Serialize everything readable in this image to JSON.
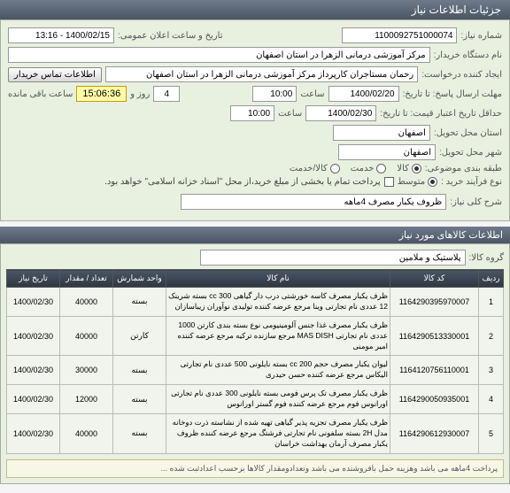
{
  "titlebar": "جزئیات اطلاعات نیاز",
  "form": {
    "need_no_label": "شماره نیاز:",
    "need_no": "1100092751000074",
    "ann_time_label": "تاریخ و ساعت اعلان عمومی:",
    "ann_time": "1400/02/15 - 13:16",
    "buyer_org_label": "نام دستگاه خریدار:",
    "buyer_org": "مرکز آموزشی درمانی الزهرا در استان اصفهان",
    "creator_label": "ایجاد کننده درخواست:",
    "creator": "رحمان مستاجران کارپرداز مرکز آموزشی درمانی الزهرا در استان اصفهان",
    "contact_btn": "اطلاعات تماس خریدار",
    "deadline_label": "مهلت ارسال پاسخ: تا تاریخ:",
    "deadline_date": "1400/02/20",
    "deadline_hour_label": "ساعت",
    "deadline_hour": "10:00",
    "remaining_days": "4",
    "day_label": "روز و",
    "countdown": "15:06:36",
    "remain_label": "ساعت باقی مانده",
    "min_valid_label": "حداقل تاریخ اعتبار قیمت: تا تاریخ:",
    "min_valid_date": "1400/02/30",
    "min_valid_hour": "10:00",
    "deliver_prov_label": "استان محل تحویل:",
    "deliver_prov": "اصفهان",
    "deliver_city_label": "شهر محل تحویل:",
    "deliver_city": "اصفهان",
    "budget_label": "طبقه بندی موضوعی:",
    "budget_goods": "کالا",
    "budget_service": "خدمت",
    "budget_goods_service": "کالا/خدمت",
    "proc_type_label": "نوع فرآیند خرید :",
    "proc_small": "متوسط",
    "checkbox_label": "پرداخت تمام یا بخشی از مبلغ خرید،از محل \"اسناد خزانه اسلامی\" خواهد بود.",
    "need_title_label": "شرح کلی نیاز:",
    "need_title": "ظروف یکبار مصرف 4ماهه"
  },
  "section2": "اطلاعات کالاهای مورد نیاز",
  "goods_group_label": "گروه کالا:",
  "goods_group": "پلاستیک و ملامین",
  "table": {
    "headers": [
      "ردیف",
      "کد کالا",
      "نام کالا",
      "واحد شمارش",
      "تعداد / مقدار",
      "تاریخ نیاز"
    ],
    "rows": [
      [
        "1",
        "1164290395970007",
        "ظرف یکبار مصرف کاسه خورشتی درب دار گیاهی 300 cc بسته شرینک 12 عددی نام تجارتی وینا مرجع عرضه کننده تولیدی نوآوران زیباسازان",
        "بسته",
        "40000",
        "1400/02/30"
      ],
      [
        "2",
        "1164290513330001",
        "ظرف یکبار مصرف غذا جنس آلومینیومی نوع بسته بندی کارتن 1000 عددی نام تجارتی MAS DISH مرجع سازنده ترکیه مرجع عرضه کننده امیر مومنی",
        "کارتن",
        "40000",
        "1400/02/30"
      ],
      [
        "3",
        "1164120756110001",
        "لیوان یکبار مصرف حجم 200 cc بسته نایلونی 500 عددی نام تجارتی الیکاس مرجع عرضه کننده حسن حیدری",
        "بسته",
        "30000",
        "1400/02/30"
      ],
      [
        "4",
        "1164290050935001",
        "ظرف یکبار مصرف تک پرس فومی بسته نایلونی 300 عددی نام تجارتی اورانوس فوم مرجع عرضه کننده فوم گستر اورانوس",
        "بسته",
        "12000",
        "1400/02/30"
      ],
      [
        "5",
        "1164290612930007",
        "ظرف یکبار مصرف تجزیه پذیر گیاهی تهیه شده از نشاسته ذرت دوخانه مدل 2H بسته سلفونی نام تجارتی فرشتگ مرجع عرضه کننده ظروف یکبار مصرف آرمان بهداشت خراسان",
        "بسته",
        "40000",
        "1400/02/30"
      ]
    ]
  },
  "bottom_note": "پرداخت 4ماهه می باشد وهزینه حمل بافروشنده می باشد وتعدادومقدار کالاها برحسب اعدادثبت شده ..."
}
